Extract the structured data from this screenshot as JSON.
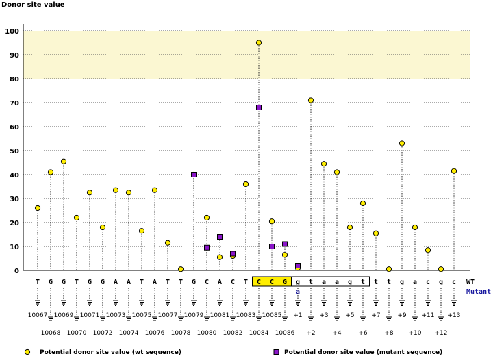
{
  "chart_data": {
    "type": "scatter",
    "ylabel": "Donor site value",
    "ylim": [
      0,
      100
    ],
    "yticks": [
      0,
      10,
      20,
      30,
      40,
      50,
      60,
      70,
      80,
      90,
      100
    ],
    "highlight_band": [
      80,
      100
    ],
    "highlight_color": "#fbf7d2",
    "grid": true,
    "bases": [
      "T",
      "G",
      "G",
      "T",
      "G",
      "G",
      "A",
      "A",
      "T",
      "A",
      "T",
      "T",
      "G",
      "C",
      "A",
      "C",
      "T",
      "C",
      "C",
      "G",
      "g",
      "t",
      "a",
      "a",
      "g",
      "t",
      "t",
      "t",
      "g",
      "a",
      "c",
      "g",
      "c"
    ],
    "positions": [
      "10067",
      "10068",
      "10069",
      "10070",
      "10071",
      "10072",
      "10073",
      "10074",
      "10075",
      "10076",
      "10077",
      "10078",
      "10079",
      "10080",
      "10081",
      "10082",
      "10083",
      "10084",
      "10085",
      "10086",
      "+1",
      "+2",
      "+3",
      "+4",
      "+5",
      "+6",
      "+7",
      "+8",
      "+9",
      "+10",
      "+11",
      "+12",
      "+13"
    ],
    "highlighted_bases": [
      17,
      18,
      19
    ],
    "boxed_bases": [
      20,
      25
    ],
    "mutation": {
      "index": 20,
      "base": "a"
    },
    "row_labels": {
      "wt": "WT",
      "mutant": "Mutant"
    },
    "series": [
      {
        "name": "Potential donor site value (wt sequence)",
        "marker": "circle",
        "color": "#ffee00",
        "values": [
          26,
          41,
          45.5,
          22,
          32.5,
          18,
          33.5,
          32.5,
          16.5,
          33.5,
          11.5,
          0.5,
          40,
          22,
          5.5,
          6,
          36,
          95,
          20.5,
          6.5,
          1,
          71,
          44.5,
          41,
          18,
          28,
          15.5,
          0.5,
          53,
          18,
          8.5,
          0.5,
          41.5
        ]
      },
      {
        "name": "Potential donor site value (mutant sequence)",
        "marker": "square",
        "color": "#8a16c8",
        "values": [
          null,
          null,
          null,
          null,
          null,
          null,
          null,
          null,
          null,
          null,
          null,
          null,
          40,
          9.5,
          14,
          7,
          null,
          68,
          10,
          11,
          2,
          null,
          null,
          null,
          null,
          null,
          null,
          null,
          null,
          null,
          null,
          null,
          null
        ]
      }
    ]
  }
}
